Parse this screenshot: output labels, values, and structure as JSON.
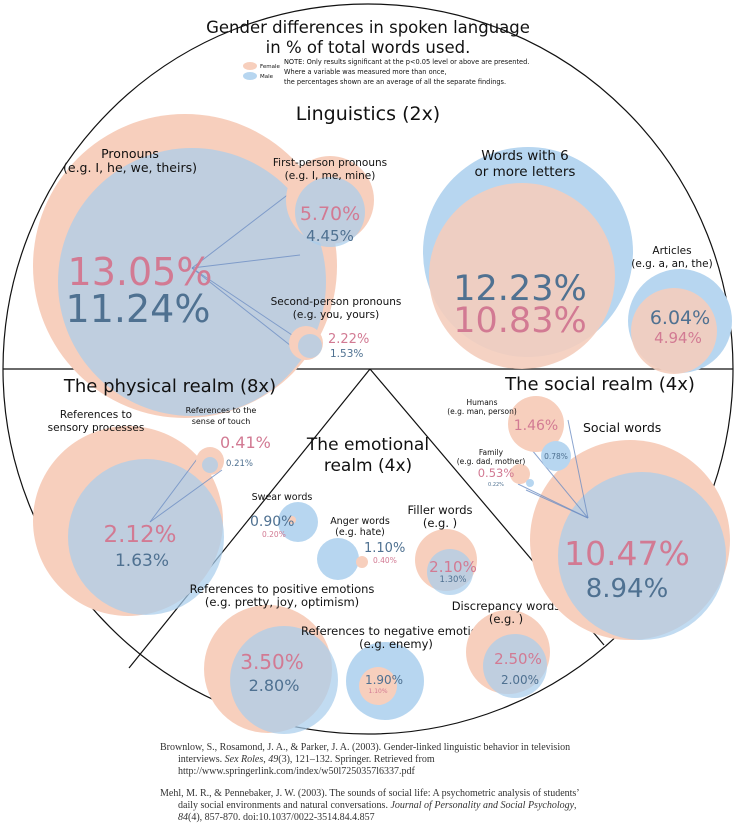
{
  "title": {
    "line1": "Gender differences in spoken language",
    "line2": "in % of total words used."
  },
  "legend": {
    "female": "Female",
    "male": "Male",
    "female_color": "#f7cfbd",
    "male_color": "#b7d6f0"
  },
  "note": {
    "line1": "NOTE: Only results significant at the p<0.05 level or above are presented.",
    "line2": "Where a variable was measured more than once,",
    "line3": "the percentages shown are an average of all the separate findings."
  },
  "sections": {
    "linguistics": {
      "title": "Linguistics (2x)",
      "pronouns": {
        "label1": "Pronouns",
        "label2": "(e.g. I, he, we, theirs)",
        "female": "13.05%",
        "male": "11.24%"
      },
      "first_person": {
        "label1": "First-person pronouns",
        "label2": "(e.g. I, me, mine)",
        "female": "5.70%",
        "male": "4.45%"
      },
      "second_person": {
        "label1": "Second-person pronouns",
        "label2": "(e.g. you, yours)",
        "female": "2.22%",
        "male": "1.53%"
      },
      "long_words": {
        "label1": "Words with 6",
        "label2": "or more letters",
        "female": "10.83%",
        "male": "12.23%"
      },
      "articles": {
        "label1": "Articles",
        "label2": "(e.g. a, an, the)",
        "female": "4.94%",
        "male": "6.04%"
      }
    },
    "physical": {
      "title": "The physical realm (8x)",
      "sensory": {
        "label1": "References to",
        "label2": "sensory processes",
        "female": "2.12%",
        "male": "1.63%"
      },
      "touch": {
        "label1": "References to the",
        "label2": "sense of touch",
        "female": "0.41%",
        "male": "0.21%"
      }
    },
    "emotional": {
      "title1": "The emotional",
      "title2": "realm (4x)",
      "swear": {
        "label1": "Swear words",
        "female": "0.20%",
        "male": "0.90%"
      },
      "anger": {
        "label1": "Anger words",
        "label2": "(e.g. hate)",
        "female": "0.40%",
        "male": "1.10%"
      },
      "filler": {
        "label1": "Filler words",
        "label2": "(e.g. )",
        "female": "2.10%",
        "male": "1.30%"
      },
      "positive": {
        "label1": "References to positive emotions",
        "label2": "(e.g. pretty, joy, optimism)",
        "female": "3.50%",
        "male": "2.80%"
      },
      "negative": {
        "label1": "References to negative emotions",
        "label2": "(e.g. enemy)",
        "female": "1.10%",
        "male": "1.90%"
      },
      "discrepancy": {
        "label1": "Discrepancy words",
        "label2": "(e.g. )",
        "female": "2.50%",
        "male": "2.00%"
      }
    },
    "social": {
      "title": "The social realm (4x)",
      "social_words": {
        "label1": "Social words",
        "female": "10.47%",
        "male": "8.94%"
      },
      "humans": {
        "label1": "Humans",
        "label2": "(e.g. man, person)",
        "female": "1.46%",
        "male": "0.78%"
      },
      "family": {
        "label1": "Family",
        "label2": "(e.g. dad, mother)",
        "female": "0.53%",
        "male": "0.22%"
      }
    }
  },
  "references": [
    {
      "main": "Brownlow, S., Rosamond, J. A., & Parker, J. A. (2003). Gender-linked linguistic behavior in television interviews. ",
      "journal": "Sex Roles",
      "sep": ", ",
      "volume": "49",
      "rest": "(3), 121–132. Springer. Retrieved from http://www.springerlink.com/index/w50l7250357l6337.pdf"
    },
    {
      "main": "Mehl, M. R., & Pennebaker, J. W. (2003). The sounds of social life: A psychometric analysis of students’ daily social environments and natural conversations. ",
      "journal": "Journal of Personality and Social Psychology",
      "sep": ", ",
      "volume": "84",
      "rest": "(4), 857-870. doi:10.1037/0022-3514.84.4.857"
    }
  ]
}
